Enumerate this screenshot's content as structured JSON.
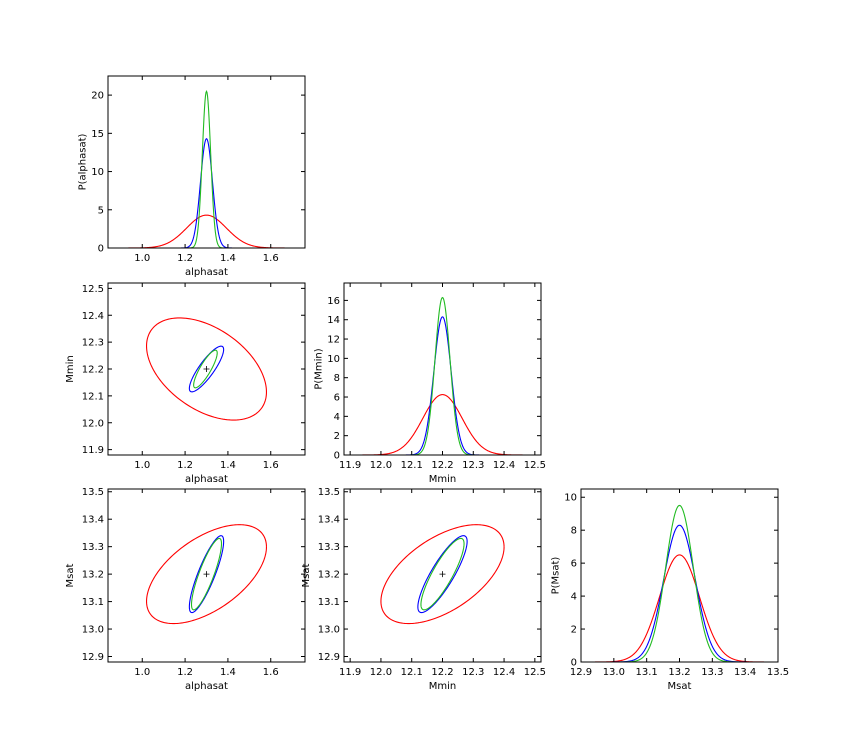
{
  "chart_data": [
    {
      "panel": "alphasat-marginal",
      "type": "line",
      "xlabel": "alphasat",
      "ylabel": "P(alphasat)",
      "xlim": [
        0.84,
        1.76
      ],
      "ylim": [
        0,
        22.5
      ],
      "xticks": [
        "1.0",
        "1.2",
        "1.4",
        "1.6"
      ],
      "yticks": [
        "0",
        "5",
        "10",
        "15",
        "20"
      ],
      "series": [
        {
          "color": "#ff0000",
          "shape": "gaussian",
          "mean": 1.3,
          "sigma": 0.093,
          "peak": 4.3
        },
        {
          "color": "#0000ff",
          "shape": "gaussian",
          "mean": 1.3,
          "sigma": 0.028,
          "peak": 14.3
        },
        {
          "color": "#22bb22",
          "shape": "gaussian",
          "mean": 1.3,
          "sigma": 0.0194,
          "peak": 20.5
        }
      ]
    },
    {
      "panel": "alphasat-vs-mmin",
      "type": "scatter",
      "xlabel": "alphasat",
      "ylabel": "Mmin",
      "xlim": [
        0.84,
        1.76
      ],
      "ylim": [
        11.88,
        12.52
      ],
      "xticks": [
        "1.0",
        "1.2",
        "1.4",
        "1.6"
      ],
      "yticks": [
        "11.9",
        "12.0",
        "12.1",
        "12.2",
        "12.3",
        "12.4",
        "12.5"
      ],
      "center": [
        1.3,
        12.2
      ],
      "ellipses": [
        {
          "color": "#ff0000",
          "x_range": [
            1.02,
            1.58
          ],
          "y_range": [
            12.01,
            12.39
          ],
          "tilt": "negative"
        },
        {
          "color": "#0000ff",
          "x_range": [
            1.22,
            1.38
          ],
          "y_range": [
            12.115,
            12.285
          ],
          "tilt": "positive"
        },
        {
          "color": "#22bb22",
          "x_range": [
            1.24,
            1.35
          ],
          "y_range": [
            12.13,
            12.27
          ],
          "tilt": "positive"
        }
      ]
    },
    {
      "panel": "mmin-marginal",
      "type": "line",
      "xlabel": "Mmin",
      "ylabel": "P(Mmin)",
      "xlim": [
        11.88,
        12.52
      ],
      "ylim": [
        0,
        17.8
      ],
      "xticks": [
        "11.9",
        "12.0",
        "12.1",
        "12.2",
        "12.3",
        "12.4",
        "12.5"
      ],
      "yticks": [
        "0",
        "2",
        "4",
        "6",
        "8",
        "10",
        "12",
        "14",
        "16"
      ],
      "series": [
        {
          "color": "#ff0000",
          "shape": "gaussian",
          "mean": 12.2,
          "sigma": 0.064,
          "peak": 6.25
        },
        {
          "color": "#0000ff",
          "shape": "gaussian",
          "mean": 12.2,
          "sigma": 0.028,
          "peak": 14.3
        },
        {
          "color": "#22bb22",
          "shape": "gaussian",
          "mean": 12.2,
          "sigma": 0.0245,
          "peak": 16.3
        }
      ]
    },
    {
      "panel": "alphasat-vs-msat",
      "type": "scatter",
      "xlabel": "alphasat",
      "ylabel": "Msat",
      "xlim": [
        0.84,
        1.76
      ],
      "ylim": [
        12.88,
        13.51
      ],
      "xticks": [
        "1.0",
        "1.2",
        "1.4",
        "1.6"
      ],
      "yticks": [
        "12.9",
        "13.0",
        "13.1",
        "13.2",
        "13.3",
        "13.4",
        "13.5"
      ],
      "center": [
        1.3,
        13.2
      ],
      "ellipses": [
        {
          "color": "#ff0000",
          "x_range": [
            1.02,
            1.58
          ],
          "y_range": [
            13.02,
            13.38
          ],
          "tilt": "positive"
        },
        {
          "color": "#0000ff",
          "x_range": [
            1.22,
            1.38
          ],
          "y_range": [
            13.06,
            13.34
          ],
          "tilt": "positive"
        },
        {
          "color": "#22bb22",
          "x_range": [
            1.23,
            1.37
          ],
          "y_range": [
            13.07,
            13.33
          ],
          "tilt": "positive"
        }
      ]
    },
    {
      "panel": "mmin-vs-msat",
      "type": "scatter",
      "xlabel": "Mmin",
      "ylabel": "Msat",
      "xlim": [
        11.88,
        12.52
      ],
      "ylim": [
        12.88,
        13.51
      ],
      "xticks": [
        "11.9",
        "12.0",
        "12.1",
        "12.2",
        "12.3",
        "12.4",
        "12.5"
      ],
      "yticks": [
        "12.9",
        "13.0",
        "13.1",
        "13.2",
        "13.3",
        "13.4",
        "13.5"
      ],
      "center": [
        12.2,
        13.2
      ],
      "ellipses": [
        {
          "color": "#ff0000",
          "x_range": [
            12.0,
            12.4
          ],
          "y_range": [
            13.02,
            13.38
          ],
          "tilt": "positive"
        },
        {
          "color": "#0000ff",
          "x_range": [
            12.12,
            12.28
          ],
          "y_range": [
            13.06,
            13.34
          ],
          "tilt": "positive"
        },
        {
          "color": "#22bb22",
          "x_range": [
            12.13,
            12.27
          ],
          "y_range": [
            13.07,
            13.33
          ],
          "tilt": "positive"
        }
      ]
    },
    {
      "panel": "msat-marginal",
      "type": "line",
      "xlabel": "Msat",
      "ylabel": "P(Msat)",
      "xlim": [
        12.9,
        13.5
      ],
      "ylim": [
        0,
        10.5
      ],
      "xticks": [
        "12.9",
        "13.0",
        "13.1",
        "13.2",
        "13.3",
        "13.4",
        "13.5"
      ],
      "yticks": [
        "0",
        "2",
        "4",
        "6",
        "8",
        "10"
      ],
      "series": [
        {
          "color": "#ff0000",
          "shape": "gaussian",
          "mean": 13.2,
          "sigma": 0.061,
          "peak": 6.5
        },
        {
          "color": "#0000ff",
          "shape": "gaussian",
          "mean": 13.2,
          "sigma": 0.048,
          "peak": 8.3
        },
        {
          "color": "#22bb22",
          "shape": "gaussian",
          "mean": 13.2,
          "sigma": 0.042,
          "peak": 9.5
        }
      ]
    }
  ]
}
